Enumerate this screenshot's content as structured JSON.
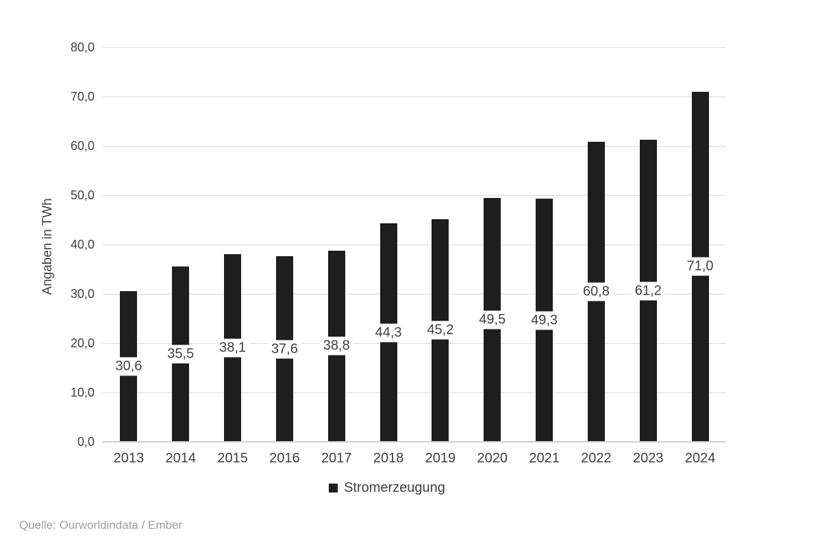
{
  "chart_data": {
    "type": "bar",
    "title": "",
    "xlabel": "",
    "ylabel": "Angaben in TWh",
    "categories": [
      "2013",
      "2014",
      "2015",
      "2016",
      "2017",
      "2018",
      "2019",
      "2020",
      "2021",
      "2022",
      "2023",
      "2024"
    ],
    "values": [
      30.6,
      35.5,
      38.1,
      37.6,
      38.8,
      44.3,
      45.2,
      49.5,
      49.3,
      60.8,
      61.2,
      71.0
    ],
    "value_labels": [
      "30,6",
      "35,5",
      "38,1",
      "37,6",
      "38,8",
      "44,3",
      "45,2",
      "49,5",
      "49,3",
      "60,8",
      "61,2",
      "71,0"
    ],
    "value_label_position": "inside-center",
    "ylim": [
      0,
      80
    ],
    "ytick_step": 10,
    "ytick_labels": [
      "0,0",
      "10,0",
      "20,0",
      "30,0",
      "40,0",
      "50,0",
      "60,0",
      "70,0",
      "80,0"
    ],
    "grid": true,
    "legend_position": "bottom",
    "legend": [
      {
        "label": "Stromerzeugung",
        "color": "#1e1e1e"
      }
    ]
  },
  "footer": {
    "source": "Quelle: Ourworldindata / Ember"
  },
  "colors": {
    "bar": "#1e1e1e",
    "grid": "#d9d9d9",
    "axis": "#cfcfcf",
    "text": "#3f3f3f",
    "label_background": "#ffffff",
    "source_text": "#9e9e9e",
    "background": "#ffffff"
  }
}
